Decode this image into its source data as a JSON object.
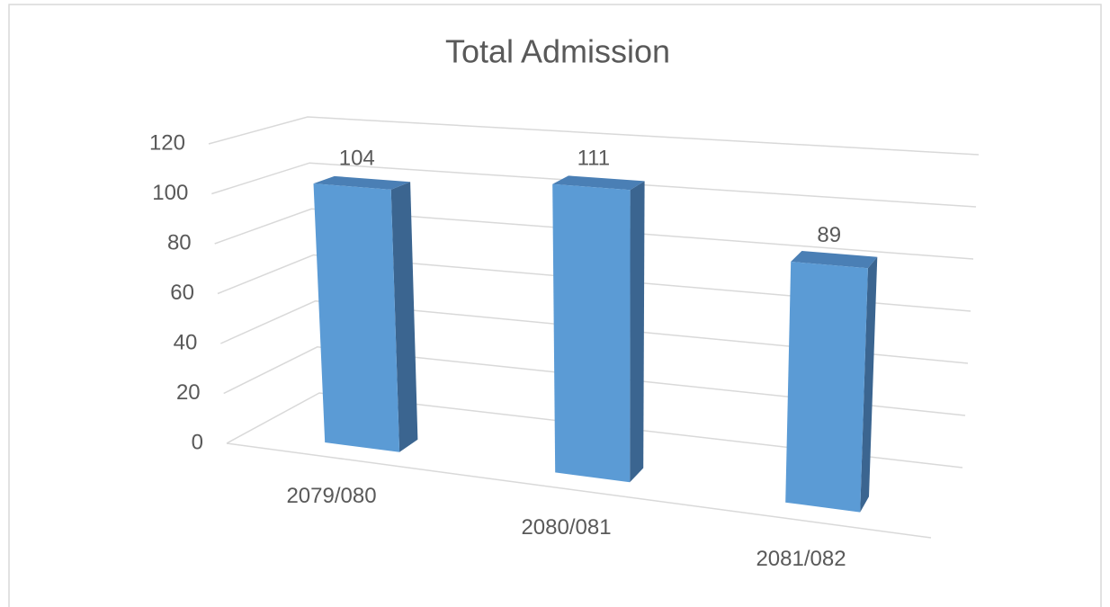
{
  "chart_data": {
    "type": "bar3d",
    "title": "Total Admission",
    "categories": [
      "2079/080",
      "2080/081",
      "2081/082"
    ],
    "values": [
      104,
      111,
      89
    ],
    "color": "#5b9bd5",
    "ylim": [
      0,
      120
    ],
    "yticks": [
      0,
      20,
      40,
      60,
      80,
      100,
      120
    ],
    "grid": true
  }
}
